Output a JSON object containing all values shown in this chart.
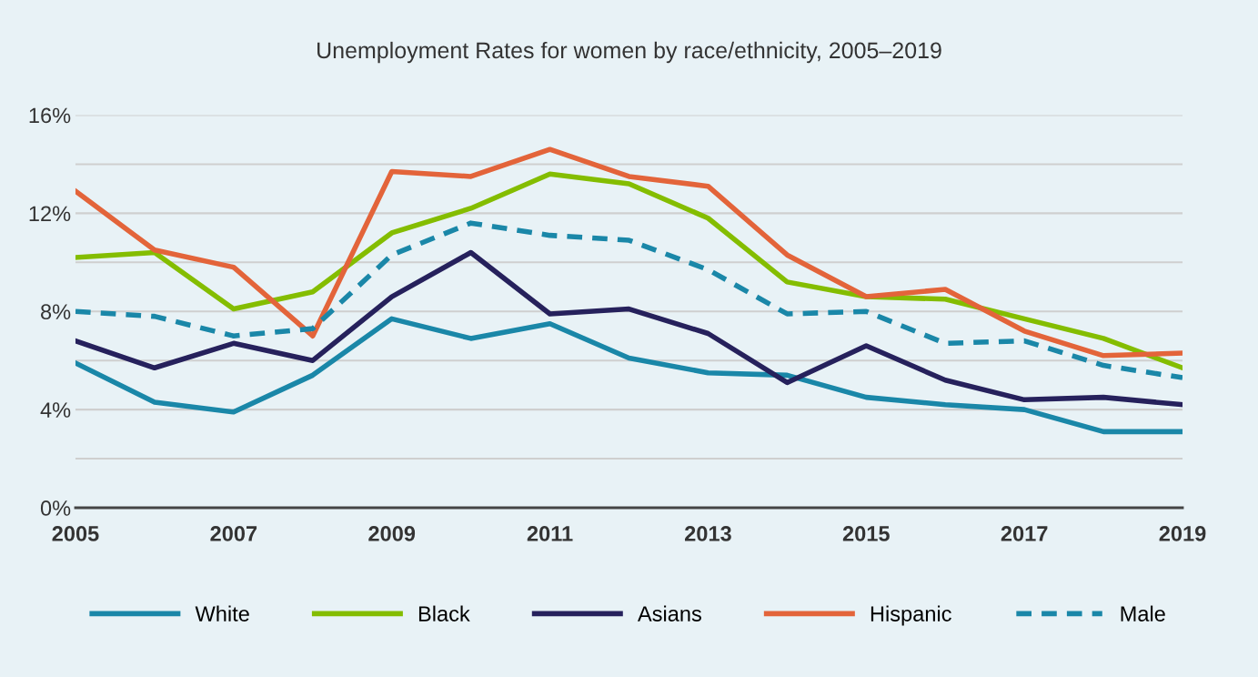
{
  "chart_data": {
    "type": "line",
    "title": "Unemployment Rates for women by race/ethnicity, 2005–2019",
    "x": [
      2005,
      2006,
      2007,
      2008,
      2009,
      2010,
      2011,
      2012,
      2013,
      2014,
      2015,
      2016,
      2017,
      2018,
      2019
    ],
    "series": [
      {
        "name": "White",
        "color": "#1a87a8",
        "values": [
          5.9,
          4.3,
          3.9,
          5.4,
          7.7,
          6.9,
          7.5,
          6.1,
          5.5,
          5.4,
          4.5,
          4.2,
          4.0,
          3.1,
          3.1
        ]
      },
      {
        "name": "Black",
        "color": "#84bd00",
        "values": [
          10.2,
          10.4,
          8.1,
          8.8,
          11.2,
          12.2,
          13.6,
          13.2,
          11.8,
          9.2,
          8.6,
          8.5,
          7.7,
          6.9,
          5.7
        ]
      },
      {
        "name": "Asians",
        "color": "#26215c",
        "values": [
          6.8,
          5.7,
          6.7,
          6.0,
          8.6,
          10.4,
          7.9,
          8.1,
          7.1,
          5.1,
          6.6,
          5.2,
          4.4,
          4.5,
          4.2
        ]
      },
      {
        "name": "Hispanic",
        "color": "#e3643a",
        "values": [
          12.9,
          10.5,
          9.8,
          7.0,
          13.7,
          13.5,
          14.6,
          13.5,
          13.1,
          10.3,
          8.6,
          8.9,
          7.2,
          6.2,
          6.3
        ]
      },
      {
        "name": "Male",
        "color": "#1a87a8",
        "line_style": "dashed",
        "values": [
          8.0,
          7.8,
          7.0,
          7.3,
          10.3,
          11.6,
          11.1,
          10.9,
          9.7,
          7.9,
          8.0,
          6.7,
          6.8,
          5.8,
          5.3
        ]
      }
    ],
    "xlim": [
      2005,
      2019
    ],
    "xticks": [
      2005,
      2007,
      2009,
      2011,
      2013,
      2015,
      2017,
      2019
    ],
    "ylim": [
      0,
      16
    ],
    "yticks": [
      {
        "value": 0,
        "label": "0%"
      },
      {
        "value": 2,
        "label": null
      },
      {
        "value": 4,
        "label": "4%"
      },
      {
        "value": 6,
        "label": null
      },
      {
        "value": 8,
        "label": "8%"
      },
      {
        "value": 10,
        "label": null
      },
      {
        "value": 12,
        "label": "12%"
      },
      {
        "value": 14,
        "label": null
      },
      {
        "value": 16,
        "label": "16%"
      }
    ],
    "grid": "y",
    "legend": "bottom",
    "marker": "none"
  }
}
